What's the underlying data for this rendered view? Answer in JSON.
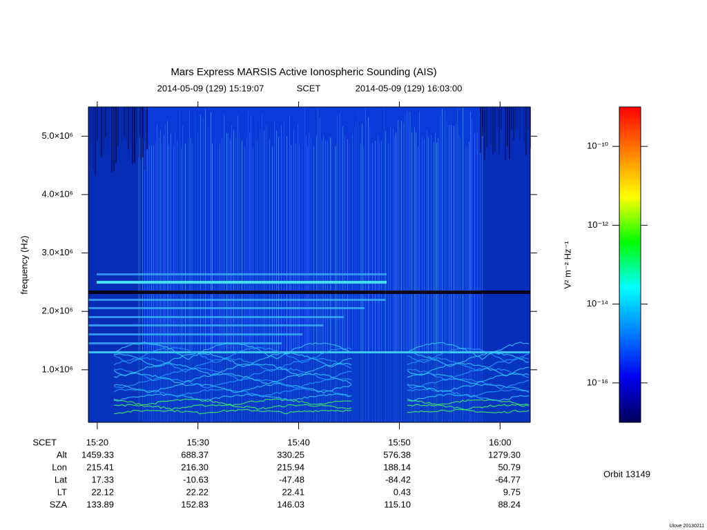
{
  "chart_data": {
    "type": "spectrogram",
    "title": "Mars Express MARSIS Active Ionospheric Sounding (AIS)",
    "start_label": "2014-05-09 (129) 15:19:07",
    "time_system": "SCET",
    "end_label": "2014-05-09 (129) 16:03:00",
    "y_label": "frequency (Hz)",
    "xlim": [
      "2014-05-09T15:19:07",
      "2014-05-09T16:03:00"
    ],
    "xticks": [
      {
        "value": "2014-05-09T15:20:00",
        "label": "15:20"
      },
      {
        "value": "2014-05-09T15:30:00",
        "label": "15:30"
      },
      {
        "value": "2014-05-09T15:40:00",
        "label": "15:40"
      },
      {
        "value": "2014-05-09T15:50:00",
        "label": "15:50"
      },
      {
        "value": "2014-05-09T16:00:00",
        "label": "16:00"
      }
    ],
    "ylim": [
      100000,
      5500000
    ],
    "yticks": [
      {
        "value": 1000000,
        "label": "1.0×10⁶"
      },
      {
        "value": 2000000,
        "label": "2.0×10⁶"
      },
      {
        "value": 3000000,
        "label": "3.0×10⁶"
      },
      {
        "value": 4000000,
        "label": "4.0×10⁶"
      },
      {
        "value": 5000000,
        "label": "5.0×10⁶"
      }
    ],
    "colorbar": {
      "label": "V² m⁻² Hz⁻¹",
      "log_scale": true,
      "lim": [
        1e-17,
        1e-09
      ],
      "ticks": [
        {
          "value": 1e-10,
          "label": "10⁻¹⁰"
        },
        {
          "value": 1e-12,
          "label": "10⁻¹²"
        },
        {
          "value": 1e-14,
          "label": "10⁻¹⁴"
        },
        {
          "value": 1e-16,
          "label": "10⁻¹⁶"
        }
      ],
      "colormap": [
        "#00005a",
        "#0000f0",
        "#0080ff",
        "#00ffff",
        "#00ff00",
        "#ffff00",
        "#ff8000",
        "#ff0000"
      ]
    },
    "ephemeris": {
      "header": "SCET",
      "labels": [
        "Alt",
        "Lon",
        "Lat",
        "LT",
        "SZA"
      ],
      "rows": [
        [
          "1459.33",
          "688.37",
          "330.25",
          "576.38",
          "1279.30"
        ],
        [
          "215.41",
          "216.30",
          "215.94",
          "188.14",
          "50.79"
        ],
        [
          "17.33",
          "-10.63",
          "-47.48",
          "-84.42",
          "-64.77"
        ],
        [
          "22.12",
          "22.22",
          "22.41",
          "0.43",
          "9.75"
        ],
        [
          "133.89",
          "152.83",
          "146.03",
          "115.10",
          "88.24"
        ]
      ]
    },
    "orbit": "Orbit 13149",
    "footer": "Ulove 20130211"
  }
}
